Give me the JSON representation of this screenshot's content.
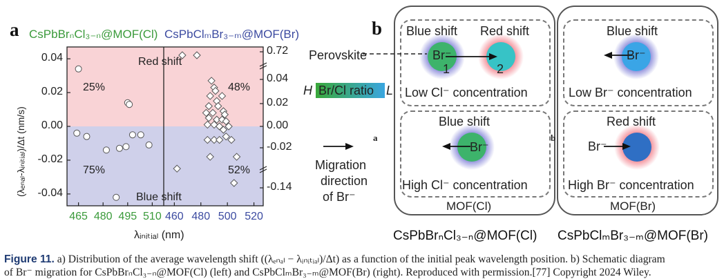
{
  "panel_a": {
    "letter": "a",
    "legend_left": "CsPbBrₙCl₃₋ₙ@MOF(Cl)",
    "legend_right": "CsPbClₘBr₃₋ₘ@MOF(Br)",
    "ylabel": "(λₑₙₐₗ-λᵢₙᵢₜᵢₐₗ)/Δt (nm/s)",
    "xlabel": "λᵢₙᵢₜᵢₐₗ (nm)",
    "red_shift": "Red shift",
    "blue_shift": "Blue shift",
    "pct_tl": "25%",
    "pct_bl": "75%",
    "pct_tr": "48%",
    "pct_br": "52%"
  },
  "chart_data": {
    "type": "scatter",
    "left": {
      "x_ticks": [
        "465",
        "480",
        "495",
        "510"
      ],
      "xlim": [
        458,
        517
      ],
      "y_ticks": [
        "0.04",
        "0.02",
        "0.00",
        "-0.02",
        "-0.04"
      ],
      "ylim": [
        -0.047,
        0.047
      ],
      "points": [
        [
          465,
          0.034
        ],
        [
          495,
          0.014
        ],
        [
          496,
          0.013
        ],
        [
          464,
          -0.004
        ],
        [
          470,
          -0.006
        ],
        [
          482,
          -0.014
        ],
        [
          490,
          -0.013
        ],
        [
          494,
          -0.012
        ],
        [
          498,
          -0.005
        ],
        [
          503,
          -0.005
        ],
        [
          508,
          -0.011
        ],
        [
          488,
          -0.042
        ]
      ]
    },
    "right": {
      "x_ticks": [
        "460",
        "480",
        "500",
        "520"
      ],
      "xlim": [
        452,
        527
      ],
      "y_ticks_right": [
        "0.72",
        "0.04",
        "0.02",
        "0.00",
        "-0.02",
        "-0.14"
      ],
      "points": [
        [
          477,
          0.09
        ],
        [
          466,
          0.054
        ],
        [
          488,
          0.027
        ],
        [
          490,
          0.023
        ],
        [
          491,
          0.021
        ],
        [
          487,
          0.018
        ],
        [
          492,
          0.015
        ],
        [
          496,
          0.018
        ],
        [
          486,
          0.012
        ],
        [
          493,
          0.012
        ],
        [
          497,
          0.009
        ],
        [
          484,
          0.008
        ],
        [
          489,
          0.008
        ],
        [
          498,
          0.007
        ],
        [
          486,
          0.005
        ],
        [
          492,
          0.004
        ],
        [
          496,
          0.004
        ],
        [
          499,
          0.003
        ],
        [
          485,
          0.001
        ],
        [
          490,
          0.001
        ],
        [
          494,
          0.0
        ],
        [
          497,
          -0.002
        ],
        [
          501,
          0.0
        ],
        [
          485,
          -0.008
        ],
        [
          490,
          -0.008
        ],
        [
          494,
          -0.008
        ],
        [
          499,
          -0.006
        ],
        [
          503,
          -0.008
        ],
        [
          487,
          -0.018
        ],
        [
          507,
          -0.018
        ],
        [
          462,
          -0.025
        ],
        [
          505,
          -0.044
        ]
      ]
    }
  },
  "panel_b": {
    "letter": "b",
    "blue_shift": "Blue shift",
    "red_shift": "Red shift",
    "perovskite": "Perovskite",
    "br": "Br⁻",
    "one": "1",
    "two": "2",
    "ratio_h": "H",
    "ratio_text": "Br/Cl ratio",
    "ratio_l": "L",
    "low_cl": "Low Cl⁻ concentration",
    "high_cl": "High Cl⁻ concentration",
    "low_br": "Low Br⁻ concentration",
    "high_br": "High Br⁻ concentration",
    "migration1": "Migration",
    "migration2": "direction",
    "migration3": "of Br⁻",
    "mof_cl": "MOF(Cl)",
    "mof_br": "MOF(Br)",
    "small_a": "a",
    "small_b": "b",
    "bottom_left": "CsPbBrₙCl₃₋ₙ@MOF(Cl)",
    "bottom_right": "CsPbClₘBr₃₋ₘ@MOF(Br)"
  },
  "caption": {
    "label": "Figure 11.",
    "line1": "a) Distribution of the average wavelength shift ((λₑₙₐₗ − λᵢₙᵢₜᵢₐₗ)/Δt) as a function of the initial peak wavelength position. b) Schematic diagram",
    "line2": "of Br⁻ migration for CsPbBrₙCl₃₋ₙ@MOF(Cl) (left) and CsPbClₘBr₃₋ₘ@MOF(Br) (right). Reproduced with permission.[77] Copyright 2024 Wiley."
  },
  "colors": {
    "red_region": "#f9d3d6",
    "blue_region": "#cfd0ea",
    "green_text": "#3a9a3a",
    "blue_text": "#3b4aa0",
    "green_circle": "#3db36b",
    "teal_circle": "#37c3c6",
    "blue_circle": "#3aa5e6",
    "darkblue_circle": "#2f6fc4"
  }
}
